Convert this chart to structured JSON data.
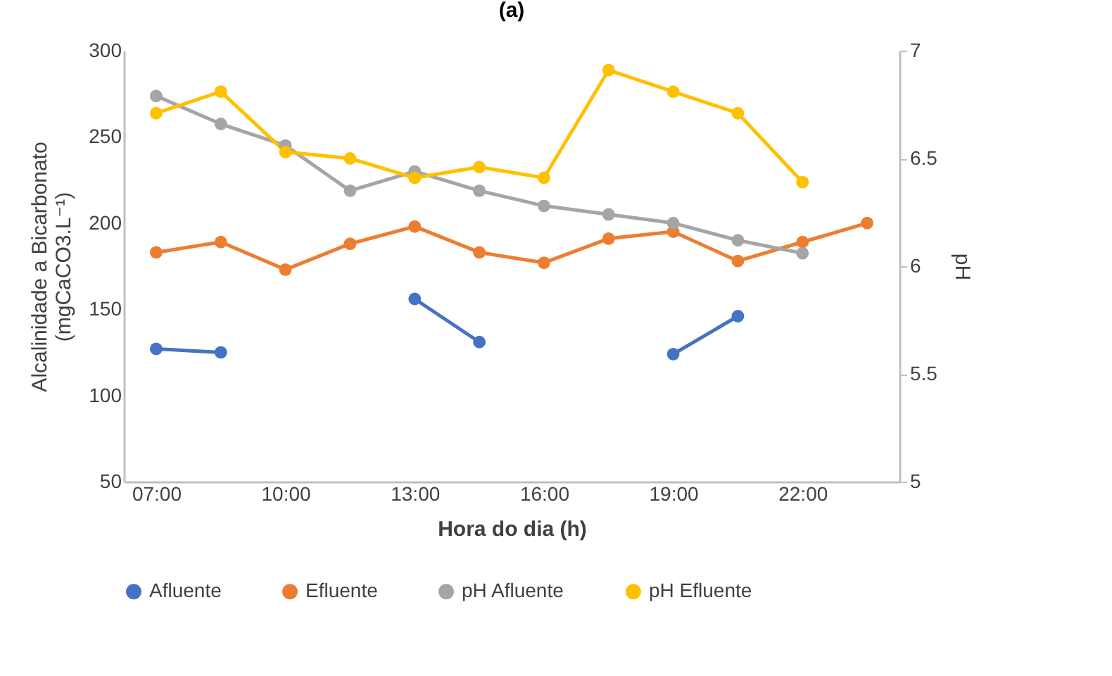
{
  "chart_data": {
    "type": "line",
    "title": "(a)",
    "xlabel": "Hora do dia (h)",
    "ylabel": "Alcalinidade a Bicarbonato (mgCaCO3.L⁻¹)",
    "y2label": "pH",
    "x": [
      7,
      8.5,
      10,
      11.5,
      13,
      14.5,
      16,
      17.5,
      19,
      20.5,
      22,
      23.5
    ],
    "xlim": [
      6.25,
      24.25
    ],
    "xticks": [
      {
        "value": 7,
        "label": "07:00"
      },
      {
        "value": 10,
        "label": "10:00"
      },
      {
        "value": 13,
        "label": "13:00"
      },
      {
        "value": 16,
        "label": "16:00"
      },
      {
        "value": 19,
        "label": "19:00"
      },
      {
        "value": 22,
        "label": "22:00"
      }
    ],
    "ylim": [
      50,
      300
    ],
    "yticks": [
      50,
      100,
      150,
      200,
      250,
      300
    ],
    "y2lim": [
      5,
      7
    ],
    "y2ticks": [
      5,
      5.5,
      6,
      6.5,
      7
    ],
    "series": [
      {
        "name": "Afluente",
        "color": "#4472c4",
        "values": [
          127,
          125,
          null,
          null,
          156,
          131,
          null,
          null,
          124,
          146,
          null,
          null
        ]
      },
      {
        "name": "Efluente",
        "color": "#ed7d31",
        "values": [
          183,
          189,
          173,
          188,
          198,
          183,
          177,
          191,
          195,
          178,
          189,
          200
        ]
      },
      {
        "name": "pH Afluente",
        "color": "#a5a5a5",
        "axis": "y2",
        "values": [
          6.79,
          6.66,
          6.56,
          6.35,
          6.44,
          6.35,
          6.28,
          6.24,
          6.2,
          6.12,
          6.06,
          null
        ]
      },
      {
        "name": "pH Efluente",
        "color": "#ffc000",
        "axis": "y2",
        "values": [
          6.71,
          6.81,
          6.53,
          6.5,
          6.41,
          6.46,
          6.41,
          6.91,
          6.81,
          6.71,
          6.39,
          null
        ]
      }
    ],
    "grid": false,
    "legend": "bottom",
    "marker": "circle",
    "line_style": "solid"
  }
}
